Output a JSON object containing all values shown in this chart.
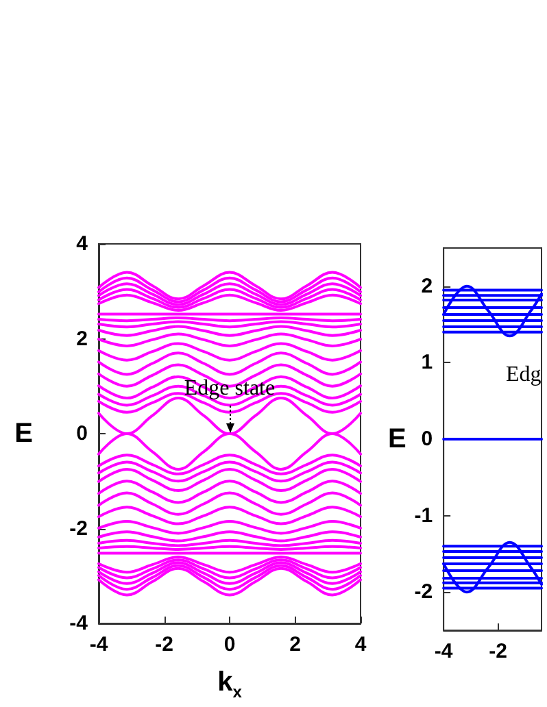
{
  "chart_data": [
    {
      "type": "line",
      "xlabel": "k$_{x}$",
      "ylabel": "E",
      "xlim": [
        -4,
        4
      ],
      "ylim": [
        -4,
        4
      ],
      "xticks": [
        -4,
        -2,
        0,
        2,
        4
      ],
      "yticks": [
        -4,
        -2,
        0,
        2,
        4
      ],
      "grid": false,
      "marker": "none",
      "line_style": "solid",
      "annotations": [
        {
          "text": "Edge state",
          "x": 0,
          "y": 0
        }
      ],
      "x": [
        -4,
        -3.14,
        -2.36,
        -1.57,
        -0.79,
        0,
        0.79,
        1.57,
        2.36,
        3.14,
        4
      ],
      "series": [
        {
          "color": "#ff00ff",
          "values": [
            3.08,
            3.4,
            3.12,
            2.84,
            3.12,
            3.4,
            3.12,
            2.84,
            3.12,
            3.4,
            3.08
          ]
        },
        {
          "color": "#ff00ff",
          "values": [
            2.99,
            3.28,
            3.03,
            2.78,
            3.03,
            3.28,
            3.03,
            2.78,
            3.03,
            3.28,
            2.99
          ]
        },
        {
          "color": "#ff00ff",
          "values": [
            2.91,
            3.16,
            2.94,
            2.72,
            2.94,
            3.16,
            2.94,
            2.72,
            2.94,
            3.16,
            2.91
          ]
        },
        {
          "color": "#ff00ff",
          "values": [
            2.82,
            3.04,
            2.85,
            2.66,
            2.85,
            3.04,
            2.85,
            2.66,
            2.85,
            3.04,
            2.82
          ]
        },
        {
          "color": "#ff00ff",
          "values": [
            2.74,
            2.92,
            2.76,
            2.6,
            2.76,
            2.92,
            2.76,
            2.6,
            2.76,
            2.92,
            2.74
          ]
        },
        {
          "color": "#ff00ff",
          "values": [
            2.52,
            2.52,
            2.52,
            2.52,
            2.52,
            2.52,
            2.52,
            2.52,
            2.52,
            2.52,
            2.52
          ]
        },
        {
          "color": "#ff00ff",
          "values": [
            2.41,
            2.38,
            2.41,
            2.44,
            2.41,
            2.38,
            2.41,
            2.44,
            2.41,
            2.38,
            2.41
          ]
        },
        {
          "color": "#ff00ff",
          "values": [
            2.31,
            2.25,
            2.31,
            2.36,
            2.31,
            2.25,
            2.31,
            2.36,
            2.31,
            2.25,
            2.31
          ]
        },
        {
          "color": "#ff00ff",
          "values": [
            2.18,
            2.07,
            2.17,
            2.26,
            2.17,
            2.07,
            2.17,
            2.26,
            2.17,
            2.07,
            2.18
          ]
        },
        {
          "color": "#ff00ff",
          "values": [
            1.99,
            1.85,
            1.98,
            2.1,
            1.98,
            1.85,
            1.98,
            2.1,
            1.98,
            1.85,
            1.99
          ]
        },
        {
          "color": "#ff00ff",
          "values": [
            1.75,
            1.55,
            1.73,
            1.9,
            1.73,
            1.55,
            1.73,
            1.9,
            1.73,
            1.55,
            1.75
          ]
        },
        {
          "color": "#ff00ff",
          "values": [
            1.51,
            1.25,
            1.48,
            1.7,
            1.48,
            1.25,
            1.48,
            1.7,
            1.48,
            1.25,
            1.51
          ]
        },
        {
          "color": "#ff00ff",
          "values": [
            1.26,
            1.0,
            1.23,
            1.45,
            1.23,
            1.0,
            1.23,
            1.45,
            1.23,
            1.0,
            1.26
          ]
        },
        {
          "color": "#ff00ff",
          "values": [
            1.01,
            0.75,
            0.98,
            1.2,
            0.98,
            0.75,
            0.98,
            1.2,
            0.98,
            0.75,
            1.01
          ]
        },
        {
          "color": "#ff00ff",
          "values": [
            0.83,
            0.6,
            0.8,
            1.0,
            0.8,
            0.6,
            0.8,
            1.0,
            0.8,
            0.6,
            0.83
          ]
        },
        {
          "color": "#ff00ff",
          "values": [
            0.68,
            0.45,
            0.65,
            0.85,
            0.65,
            0.45,
            0.65,
            0.85,
            0.65,
            0.45,
            0.68
          ]
        },
        {
          "color": "#ff00ff",
          "values": [
            0.43,
            0,
            0.38,
            0.75,
            0.38,
            0,
            0.38,
            0.75,
            0.38,
            0,
            0.43
          ]
        },
        {
          "color": "#ff00ff",
          "values": [
            -3.08,
            -3.4,
            -3.12,
            -2.84,
            -3.12,
            -3.4,
            -3.12,
            -2.84,
            -3.12,
            -3.4,
            -3.08
          ]
        },
        {
          "color": "#ff00ff",
          "values": [
            -2.99,
            -3.28,
            -3.03,
            -2.78,
            -3.03,
            -3.28,
            -3.03,
            -2.78,
            -3.03,
            -3.28,
            -2.99
          ]
        },
        {
          "color": "#ff00ff",
          "values": [
            -2.91,
            -3.16,
            -2.94,
            -2.72,
            -2.94,
            -3.16,
            -2.94,
            -2.72,
            -2.94,
            -3.16,
            -2.91
          ]
        },
        {
          "color": "#ff00ff",
          "values": [
            -2.82,
            -3.04,
            -2.85,
            -2.66,
            -2.85,
            -3.04,
            -2.85,
            -2.66,
            -2.85,
            -3.04,
            -2.82
          ]
        },
        {
          "color": "#ff00ff",
          "values": [
            -2.74,
            -2.92,
            -2.76,
            -2.6,
            -2.76,
            -2.92,
            -2.76,
            -2.6,
            -2.76,
            -2.92,
            -2.74
          ]
        },
        {
          "color": "#ff00ff",
          "values": [
            -2.52,
            -2.52,
            -2.52,
            -2.52,
            -2.52,
            -2.52,
            -2.52,
            -2.52,
            -2.52,
            -2.52,
            -2.52
          ]
        },
        {
          "color": "#ff00ff",
          "values": [
            -2.41,
            -2.38,
            -2.41,
            -2.44,
            -2.41,
            -2.38,
            -2.41,
            -2.44,
            -2.41,
            -2.38,
            -2.41
          ]
        },
        {
          "color": "#ff00ff",
          "values": [
            -2.31,
            -2.25,
            -2.31,
            -2.36,
            -2.31,
            -2.25,
            -2.31,
            -2.36,
            -2.31,
            -2.25,
            -2.31
          ]
        },
        {
          "color": "#ff00ff",
          "values": [
            -2.18,
            -2.07,
            -2.17,
            -2.26,
            -2.17,
            -2.07,
            -2.17,
            -2.26,
            -2.17,
            -2.07,
            -2.18
          ]
        },
        {
          "color": "#ff00ff",
          "values": [
            -1.99,
            -1.85,
            -1.98,
            -2.1,
            -1.98,
            -1.85,
            -1.98,
            -2.1,
            -1.98,
            -1.85,
            -1.99
          ]
        },
        {
          "color": "#ff00ff",
          "values": [
            -1.75,
            -1.55,
            -1.73,
            -1.9,
            -1.73,
            -1.55,
            -1.73,
            -1.9,
            -1.73,
            -1.55,
            -1.75
          ]
        },
        {
          "color": "#ff00ff",
          "values": [
            -1.51,
            -1.25,
            -1.48,
            -1.7,
            -1.48,
            -1.25,
            -1.48,
            -1.7,
            -1.48,
            -1.25,
            -1.51
          ]
        },
        {
          "color": "#ff00ff",
          "values": [
            -1.26,
            -1.0,
            -1.23,
            -1.45,
            -1.23,
            -1.0,
            -1.23,
            -1.45,
            -1.23,
            -1.0,
            -1.26
          ]
        },
        {
          "color": "#ff00ff",
          "values": [
            -1.01,
            -0.75,
            -0.98,
            -1.2,
            -0.98,
            -0.75,
            -0.98,
            -1.2,
            -0.98,
            -0.75,
            -1.01
          ]
        },
        {
          "color": "#ff00ff",
          "values": [
            -0.83,
            -0.6,
            -0.8,
            -1.0,
            -0.8,
            -0.6,
            -0.8,
            -1.0,
            -0.8,
            -0.6,
            -0.83
          ]
        },
        {
          "color": "#ff00ff",
          "values": [
            -0.68,
            -0.45,
            -0.65,
            -0.85,
            -0.65,
            -0.45,
            -0.65,
            -0.85,
            -0.65,
            -0.45,
            -0.68
          ]
        },
        {
          "color": "#ff00ff",
          "values": [
            -0.43,
            0,
            -0.38,
            -0.75,
            -0.38,
            0,
            -0.38,
            -0.75,
            -0.38,
            0,
            -0.43
          ]
        }
      ]
    },
    {
      "type": "line",
      "ylabel": "E",
      "xlim": [
        -4,
        -0.4
      ],
      "ylim": [
        -2.5,
        2.5
      ],
      "xticks": [
        -4,
        -2
      ],
      "yticks": [
        -2,
        -1,
        0,
        1,
        2
      ],
      "grid": false,
      "marker": "none",
      "line_style": "solid",
      "annotations": [
        "Edg"
      ],
      "x": [
        -4,
        -0.4
      ],
      "series": [
        {
          "color": "#0000ff",
          "values": [
            1.95,
            1.95
          ]
        },
        {
          "color": "#0000ff",
          "values": [
            1.88,
            1.88
          ]
        },
        {
          "color": "#0000ff",
          "values": [
            1.82,
            1.82
          ]
        },
        {
          "color": "#0000ff",
          "values": [
            1.72,
            1.72
          ]
        },
        {
          "color": "#0000ff",
          "values": [
            1.63,
            1.63
          ]
        },
        {
          "color": "#0000ff",
          "values": [
            1.55,
            1.55
          ]
        },
        {
          "color": "#0000ff",
          "values": [
            1.47,
            1.47
          ]
        },
        {
          "color": "#0000ff",
          "values": [
            1.4,
            1.4
          ]
        },
        {
          "color": "#0000ff",
          "values": [
            0,
            0
          ]
        },
        {
          "color": "#0000ff",
          "values": [
            -1.4,
            -1.4
          ]
        },
        {
          "color": "#0000ff",
          "values": [
            -1.47,
            -1.47
          ]
        },
        {
          "color": "#0000ff",
          "values": [
            -1.55,
            -1.55
          ]
        },
        {
          "color": "#0000ff",
          "values": [
            -1.63,
            -1.63
          ]
        },
        {
          "color": "#0000ff",
          "values": [
            -1.72,
            -1.72
          ]
        },
        {
          "color": "#0000ff",
          "values": [
            -1.82,
            -1.82
          ]
        },
        {
          "color": "#0000ff",
          "values": [
            -1.88,
            -1.88
          ]
        },
        {
          "color": "#0000ff",
          "values": [
            -1.95,
            -1.95
          ]
        },
        {
          "color": "#0000ff",
          "x": [
            -4,
            -3.14,
            -2.36,
            -1.57,
            -0.79,
            -0.4
          ],
          "values": [
            1.63,
            2.0,
            1.68,
            1.35,
            1.68,
            1.9
          ]
        },
        {
          "color": "#0000ff",
          "x": [
            -4,
            -3.14,
            -2.36,
            -1.57,
            -0.79,
            -0.4
          ],
          "values": [
            -1.63,
            -2.0,
            -1.68,
            -1.35,
            -1.68,
            -1.9
          ]
        }
      ]
    }
  ]
}
